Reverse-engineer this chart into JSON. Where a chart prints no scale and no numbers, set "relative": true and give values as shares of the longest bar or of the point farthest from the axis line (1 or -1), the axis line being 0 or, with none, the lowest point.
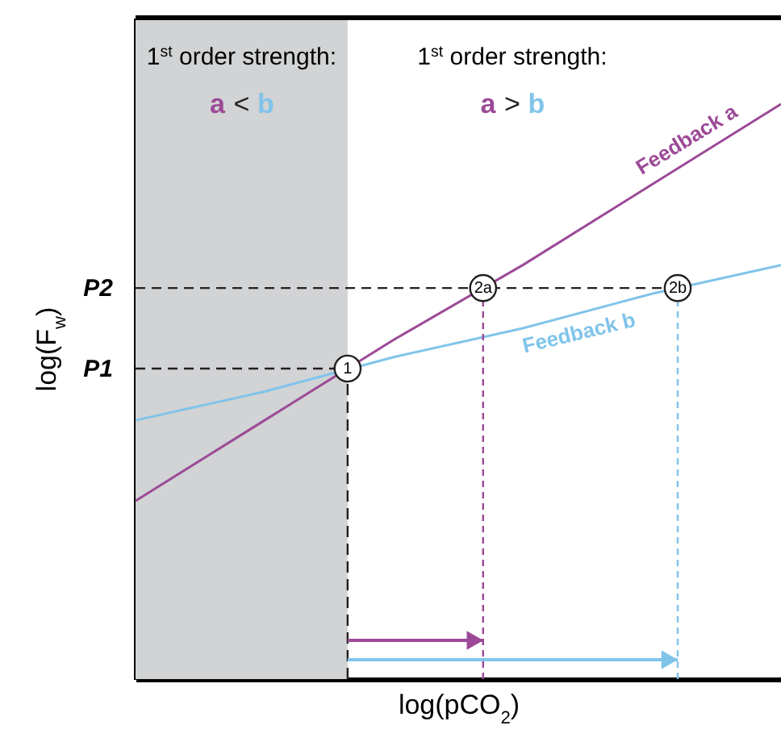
{
  "chart_data": {
    "type": "line",
    "relative": true,
    "xlabel": "log(pCO$_{2}$)",
    "ylabel": "log(F$_{w}$)",
    "categories": [
      null,
      null,
      null,
      null,
      null,
      null
    ],
    "series": [
      {
        "name": "Feedback a",
        "color": "#9c4a97",
        "values": [
          0.31,
          0.45,
          0.59,
          0.72,
          0.86,
          1.0
        ]
      },
      {
        "name": "Feedback b",
        "color": "#80c4ea",
        "values": [
          0.45,
          0.5,
          0.56,
          0.61,
          0.67,
          0.72
        ]
      }
    ],
    "line_style": "solid",
    "ref_lines": [
      {
        "axis": "y",
        "value": 0.54,
        "label": "P1",
        "line_style": "dashed",
        "color": "#231f20"
      },
      {
        "axis": "y",
        "value": 0.68,
        "label": "P2",
        "line_style": "dashed",
        "color": "#231f20"
      }
    ],
    "annotations": [
      "1$^{st}$ order strength:",
      "a < b",
      "1$^{st}$ order strength:",
      "a > b",
      "1",
      "2a",
      "2b"
    ]
  }
}
